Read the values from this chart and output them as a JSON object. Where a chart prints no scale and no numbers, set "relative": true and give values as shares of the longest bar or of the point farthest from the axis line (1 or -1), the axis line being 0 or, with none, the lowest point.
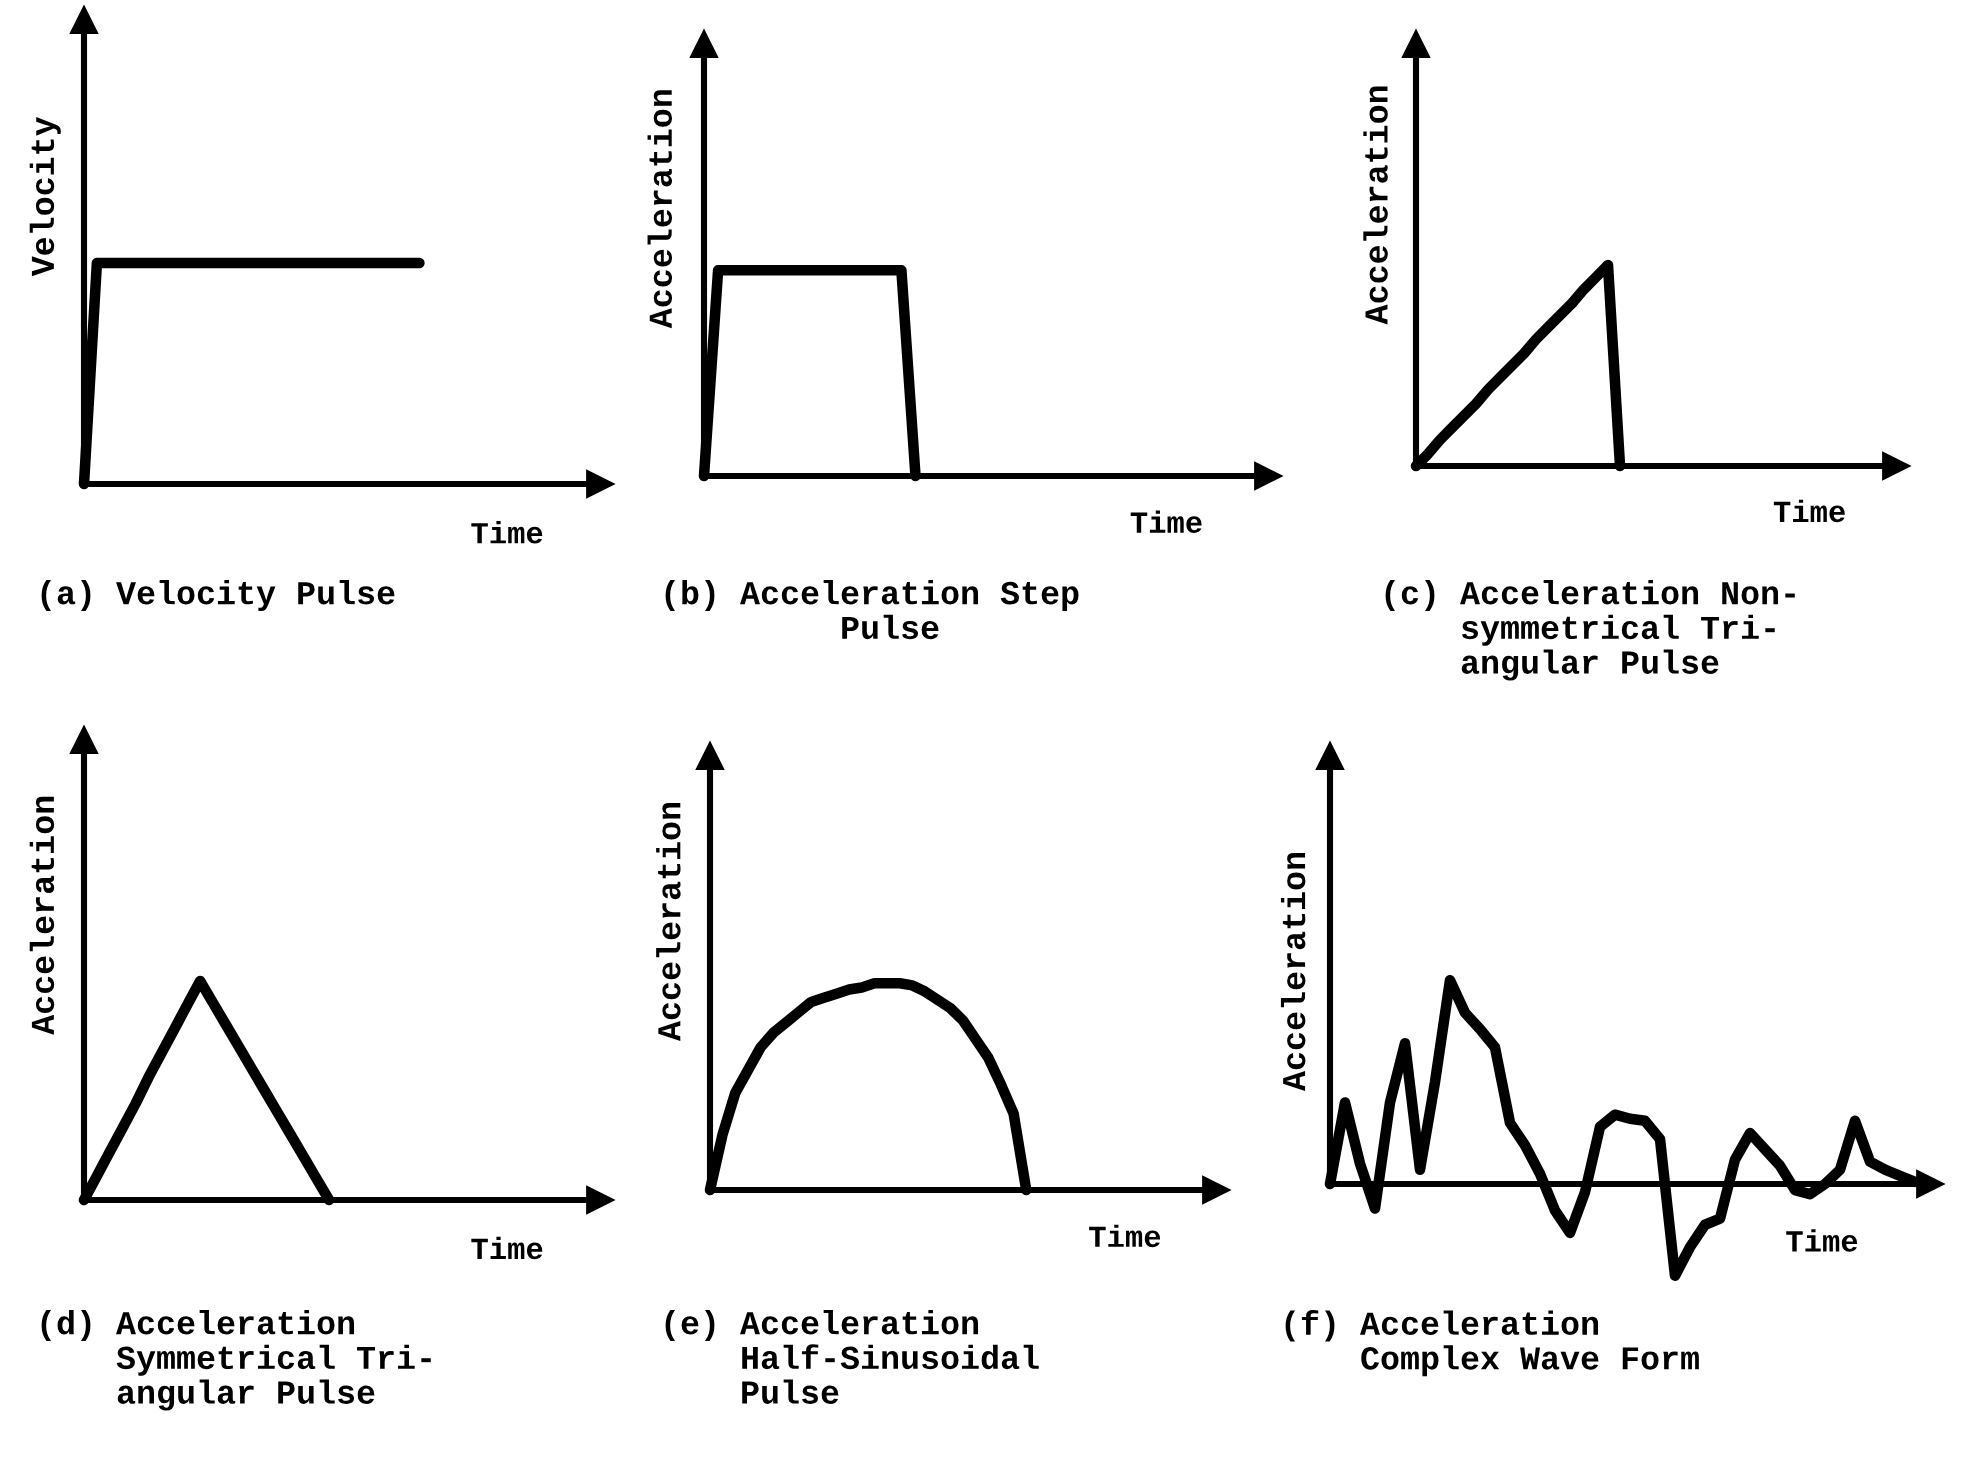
{
  "chart_data": [
    {
      "type": "line",
      "relative": true,
      "title": "(a) Velocity Pulse",
      "xlabel": "Time",
      "ylabel": "Velocity",
      "line_style": "solid",
      "categories": [
        null,
        null,
        null,
        null,
        null,
        null,
        null,
        null,
        null,
        null,
        null,
        null,
        null,
        null,
        null,
        null,
        null,
        null,
        null,
        null,
        null,
        null,
        null,
        null,
        null,
        null,
        null,
        null,
        null,
        null,
        null,
        null,
        null,
        null,
        null,
        null,
        null,
        null,
        null,
        null,
        null
      ],
      "series": [
        {
          "color": "#000000",
          "values": [
            0,
            1,
            1,
            1,
            1,
            1,
            1,
            1,
            1,
            1,
            1,
            1,
            1,
            1,
            1,
            1,
            1,
            1,
            1,
            1,
            1,
            1,
            1,
            1,
            1,
            1,
            1,
            null,
            null,
            null,
            null,
            null,
            null,
            null,
            null,
            null,
            null,
            null,
            null,
            null,
            null
          ]
        }
      ]
    },
    {
      "type": "line",
      "relative": true,
      "title": "(b) Acceleration Step\n         Pulse",
      "xlabel": "Time",
      "ylabel": "Acceleration",
      "line_style": "solid",
      "categories": [
        null,
        null,
        null,
        null,
        null,
        null,
        null,
        null,
        null,
        null,
        null,
        null,
        null,
        null,
        null,
        null,
        null,
        null,
        null,
        null,
        null,
        null,
        null,
        null,
        null,
        null,
        null,
        null,
        null,
        null,
        null,
        null,
        null,
        null,
        null,
        null,
        null,
        null,
        null,
        null,
        null
      ],
      "series": [
        {
          "color": "#000000",
          "values": [
            0,
            1,
            1,
            1,
            1,
            1,
            1,
            1,
            1,
            1,
            1,
            1,
            1,
            1,
            1,
            0,
            null,
            null,
            null,
            null,
            null,
            null,
            null,
            null,
            null,
            null,
            null,
            null,
            null,
            null,
            null,
            null,
            null,
            null,
            null,
            null,
            null,
            null,
            null,
            null,
            null
          ]
        }
      ]
    },
    {
      "type": "line",
      "relative": true,
      "title": "(c) Acceleration Non-\n    symmetrical Tri-\n    angular Pulse",
      "xlabel": "Time",
      "ylabel": "Acceleration",
      "line_style": "solid",
      "categories": [
        null,
        null,
        null,
        null,
        null,
        null,
        null,
        null,
        null,
        null,
        null,
        null,
        null,
        null,
        null,
        null,
        null,
        null,
        null,
        null,
        null,
        null,
        null,
        null,
        null,
        null,
        null,
        null,
        null,
        null,
        null,
        null,
        null,
        null,
        null,
        null,
        null,
        null,
        null,
        null,
        null
      ],
      "series": [
        {
          "color": "#000000",
          "values": [
            0,
            0.06,
            0.13,
            0.19,
            0.25,
            0.31,
            0.38,
            0.44,
            0.5,
            0.56,
            0.63,
            0.69,
            0.75,
            0.81,
            0.88,
            0.94,
            1,
            0,
            null,
            null,
            null,
            null,
            null,
            null,
            null,
            null,
            null,
            null,
            null,
            null,
            null,
            null,
            null,
            null,
            null,
            null,
            null,
            null,
            null,
            null,
            null
          ]
        }
      ]
    },
    {
      "type": "line",
      "relative": true,
      "title": "(d) Acceleration\n    Symmetrical Tri-\n    angular Pulse",
      "xlabel": "Time",
      "ylabel": "Acceleration",
      "line_style": "solid",
      "categories": [
        null,
        null,
        null,
        null,
        null,
        null,
        null,
        null,
        null,
        null,
        null,
        null,
        null,
        null,
        null,
        null,
        null,
        null,
        null,
        null,
        null,
        null,
        null,
        null,
        null,
        null,
        null,
        null,
        null,
        null,
        null,
        null,
        null,
        null,
        null,
        null,
        null,
        null,
        null,
        null,
        null
      ],
      "series": [
        {
          "color": "#000000",
          "values": [
            0,
            0.11,
            0.22,
            0.33,
            0.44,
            0.56,
            0.67,
            0.78,
            0.89,
            1,
            0.9,
            0.8,
            0.7,
            0.6,
            0.5,
            0.4,
            0.3,
            0.2,
            0.1,
            0,
            null,
            null,
            null,
            null,
            null,
            null,
            null,
            null,
            null,
            null,
            null,
            null,
            null,
            null,
            null,
            null,
            null,
            null,
            null,
            null,
            null
          ]
        }
      ]
    },
    {
      "type": "line",
      "relative": true,
      "title": "(e) Acceleration\n    Half-Sinusoidal\n    Pulse",
      "xlabel": "Time",
      "ylabel": "Acceleration",
      "line_style": "solid",
      "categories": [
        null,
        null,
        null,
        null,
        null,
        null,
        null,
        null,
        null,
        null,
        null,
        null,
        null,
        null,
        null,
        null,
        null,
        null,
        null,
        null,
        null,
        null,
        null,
        null,
        null,
        null,
        null,
        null,
        null,
        null,
        null,
        null,
        null,
        null,
        null,
        null,
        null,
        null,
        null,
        null,
        null
      ],
      "series": [
        {
          "color": "#000000",
          "values": [
            0,
            0.27,
            0.47,
            0.58,
            0.69,
            0.76,
            0.81,
            0.86,
            0.91,
            0.93,
            0.95,
            0.97,
            0.98,
            1,
            1,
            1,
            0.99,
            0.96,
            0.92,
            0.88,
            0.82,
            0.73,
            0.64,
            0.51,
            0.37,
            0,
            null,
            null,
            null,
            null,
            null,
            null,
            null,
            null,
            null,
            null,
            null,
            null,
            null,
            null,
            null
          ]
        }
      ]
    },
    {
      "type": "line",
      "relative": true,
      "title": "(f) Acceleration\n    Complex Wave Form",
      "xlabel": "Time",
      "ylabel": "Acceleration",
      "line_style": "solid",
      "categories": [
        null,
        null,
        null,
        null,
        null,
        null,
        null,
        null,
        null,
        null,
        null,
        null,
        null,
        null,
        null,
        null,
        null,
        null,
        null,
        null,
        null,
        null,
        null,
        null,
        null,
        null,
        null,
        null,
        null,
        null,
        null,
        null,
        null,
        null,
        null,
        null,
        null,
        null,
        null,
        null,
        null
      ],
      "series": [
        {
          "color": "#000000",
          "values": [
            0,
            0.4,
            0.1,
            -0.12,
            0.4,
            0.69,
            0.07,
            0.5,
            1,
            0.84,
            0.76,
            0.67,
            0.3,
            0.19,
            0.05,
            -0.13,
            -0.24,
            -0.04,
            0.28,
            0.34,
            0.32,
            0.31,
            0.22,
            -0.45,
            -0.31,
            -0.2,
            -0.17,
            0.12,
            0.25,
            0.17,
            0.09,
            -0.03,
            -0.05,
            0,
            0.07,
            0.31,
            0.11,
            0.07,
            0.04,
            0.01,
            null
          ]
        }
      ]
    }
  ]
}
